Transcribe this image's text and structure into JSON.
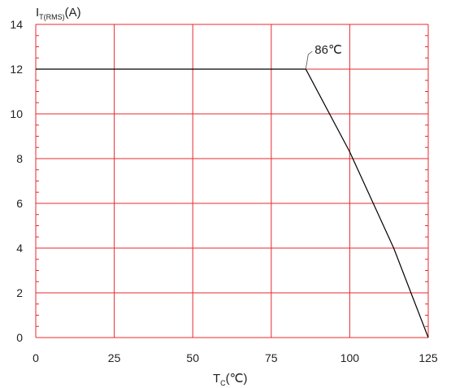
{
  "chart_data": {
    "type": "line",
    "title": "",
    "xlabel": {
      "main": "T",
      "sub": "C",
      "unit": "(℃)"
    },
    "ylabel": {
      "main": "I",
      "sub": "T(RMS)",
      "unit": "(A)"
    },
    "xlim": [
      0,
      125
    ],
    "ylim": [
      0,
      14
    ],
    "x_ticks": [
      "0",
      "25",
      "50",
      "75",
      "100",
      "125"
    ],
    "y_ticks": [
      "0",
      "2",
      "4",
      "6",
      "8",
      "10",
      "12",
      "14"
    ],
    "grid": true,
    "grid_color": "#e8282e",
    "line_color": "#000000",
    "series": [
      {
        "x": [
          0,
          86,
          100,
          114,
          125
        ],
        "y": [
          12,
          12,
          8.3,
          4,
          0
        ]
      }
    ],
    "annotations": [
      {
        "text": "86℃",
        "x": 86,
        "y": 12
      }
    ]
  }
}
